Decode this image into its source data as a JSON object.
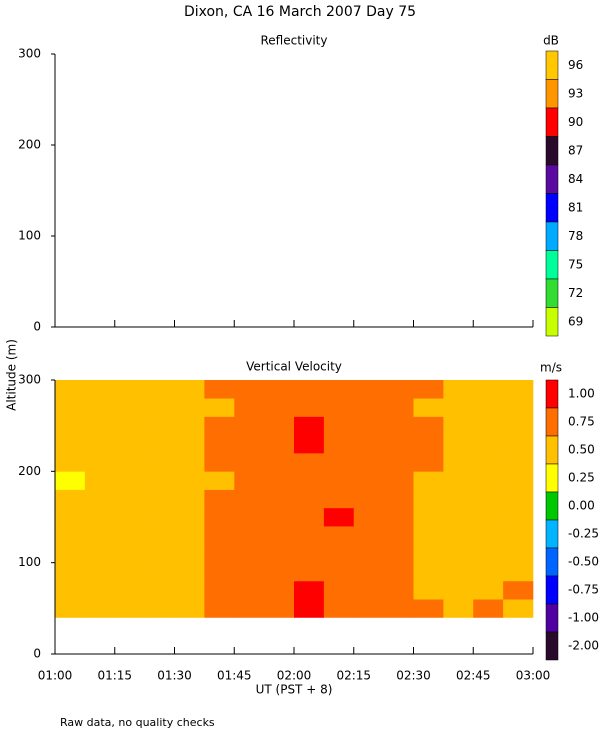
{
  "title": "Dixon, CA 16 March 2007  Day  75",
  "ylabel": "Altitude (m)",
  "xlabel": "UT  (PST + 8)",
  "note": "Raw data, no quality checks",
  "chart_data": [
    {
      "type": "heatmap",
      "title": "Reflectivity",
      "xlim": [
        1,
        3
      ],
      "xticks": [
        1,
        1.25,
        1.5,
        1.75,
        2,
        2.25,
        2.5,
        2.75,
        3
      ],
      "ylim": [
        0,
        300
      ],
      "yticks": [
        0,
        100,
        200,
        300
      ],
      "colorbar": {
        "title": "dB",
        "ticks": [
          96,
          93,
          90,
          87,
          84,
          81,
          78,
          75,
          72,
          69
        ],
        "colors": [
          "#ffc800",
          "#ff9600",
          "#ff0000",
          "#2a0a2a",
          "#5a0aa0",
          "#0000ff",
          "#00aaff",
          "#00ff9b",
          "#32dc32",
          "#c8ff00"
        ]
      }
    },
    {
      "type": "heatmap",
      "title": "Vertical Velocity",
      "xlim": [
        1,
        3
      ],
      "xticks": [
        {
          "value": 1,
          "label": "01:00"
        },
        {
          "value": 1.25,
          "label": "01:15"
        },
        {
          "value": 1.5,
          "label": "01:30"
        },
        {
          "value": 1.75,
          "label": "01:45"
        },
        {
          "value": 2,
          "label": "02:00"
        },
        {
          "value": 2.25,
          "label": "02:15"
        },
        {
          "value": 2.5,
          "label": "02:30"
        },
        {
          "value": 2.75,
          "label": "02:45"
        },
        {
          "value": 3,
          "label": "03:00"
        }
      ],
      "ylim": [
        0,
        300
      ],
      "yticks": [
        0,
        100,
        200,
        300
      ],
      "x_edges": [
        1,
        1.125,
        1.25,
        1.375,
        1.5,
        1.625,
        1.75,
        1.875,
        2,
        2.125,
        2.25,
        2.375,
        2.5,
        2.625,
        2.75,
        2.875,
        3
      ],
      "y_edges": [
        40,
        60,
        80,
        100,
        120,
        140,
        160,
        180,
        200,
        220,
        240,
        260,
        280,
        300
      ],
      "z": [
        [
          0.55,
          0.7,
          0.6,
          0.65,
          0.55,
          0.8,
          0.85,
          0.9,
          1.05,
          0.9,
          0.85,
          0.8,
          0.8,
          0.7,
          0.75,
          0.6
        ],
        [
          0.6,
          0.65,
          0.55,
          0.7,
          0.6,
          0.75,
          0.8,
          0.95,
          1.02,
          0.85,
          0.8,
          0.85,
          0.7,
          0.65,
          0.7,
          0.78
        ],
        [
          0.5,
          0.6,
          0.62,
          0.55,
          0.58,
          0.78,
          0.85,
          0.8,
          0.9,
          0.88,
          0.9,
          0.76,
          0.72,
          0.68,
          0.66,
          0.6
        ],
        [
          0.58,
          0.55,
          0.6,
          0.52,
          0.6,
          0.8,
          0.76,
          0.86,
          0.92,
          0.8,
          0.82,
          0.78,
          0.74,
          0.6,
          0.7,
          0.62
        ],
        [
          0.62,
          0.58,
          0.56,
          0.6,
          0.55,
          0.82,
          0.8,
          0.88,
          0.9,
          0.86,
          0.78,
          0.8,
          0.7,
          0.66,
          0.62,
          0.58
        ],
        [
          0.55,
          0.6,
          0.65,
          0.58,
          0.6,
          0.78,
          0.84,
          0.9,
          0.95,
          1.01,
          0.84,
          0.76,
          0.72,
          0.7,
          0.68,
          0.6
        ],
        [
          0.6,
          0.62,
          0.55,
          0.6,
          0.58,
          0.76,
          0.8,
          0.86,
          0.92,
          0.96,
          0.8,
          0.78,
          0.74,
          0.64,
          0.6,
          0.62
        ],
        [
          0.45,
          0.55,
          0.6,
          0.52,
          0.56,
          0.74,
          0.78,
          0.84,
          0.88,
          0.85,
          0.82,
          0.8,
          0.7,
          0.66,
          0.64,
          0.58
        ],
        [
          0.58,
          0.6,
          0.56,
          0.6,
          0.55,
          0.78,
          0.82,
          0.86,
          0.94,
          0.9,
          0.85,
          0.8,
          0.76,
          0.7,
          0.66,
          0.6
        ],
        [
          0.6,
          0.56,
          0.62,
          0.58,
          0.6,
          0.8,
          0.84,
          0.9,
          1.04,
          0.96,
          0.88,
          0.82,
          0.78,
          0.72,
          0.7,
          0.64
        ],
        [
          0.55,
          0.62,
          0.58,
          0.6,
          0.56,
          0.76,
          0.82,
          0.94,
          1.02,
          0.92,
          0.9,
          0.84,
          0.76,
          0.7,
          0.68,
          0.62
        ],
        [
          0.6,
          0.58,
          0.55,
          0.62,
          0.6,
          0.74,
          0.8,
          0.86,
          0.9,
          0.88,
          0.84,
          0.8,
          0.74,
          0.68,
          0.66,
          0.6
        ],
        [
          0.62,
          0.6,
          0.64,
          0.58,
          0.6,
          0.78,
          0.84,
          0.88,
          0.92,
          0.86,
          0.9,
          0.82,
          0.78,
          0.72,
          0.7,
          0.66
        ]
      ],
      "colorbar": {
        "title": "m/s",
        "ticks": [
          {
            "value": 1,
            "label": "1.00"
          },
          {
            "value": 0.75,
            "label": "0.75"
          },
          {
            "value": 0.5,
            "label": "0.50"
          },
          {
            "value": 0.25,
            "label": "0.25"
          },
          {
            "value": 0,
            "label": "0.00"
          },
          {
            "value": -0.25,
            "label": "-0.25"
          },
          {
            "value": -0.5,
            "label": "-0.50"
          },
          {
            "value": -0.75,
            "label": "-0.75"
          },
          {
            "value": -1,
            "label": "-1.00"
          },
          {
            "value": -2,
            "label": "-2.00"
          }
        ],
        "colors": [
          "#ff0000",
          "#ff6e00",
          "#ffc000",
          "#ffff00",
          "#00c800",
          "#00b4ff",
          "#0064ff",
          "#0000ff",
          "#5000a0",
          "#2a0a2a"
        ]
      }
    }
  ]
}
